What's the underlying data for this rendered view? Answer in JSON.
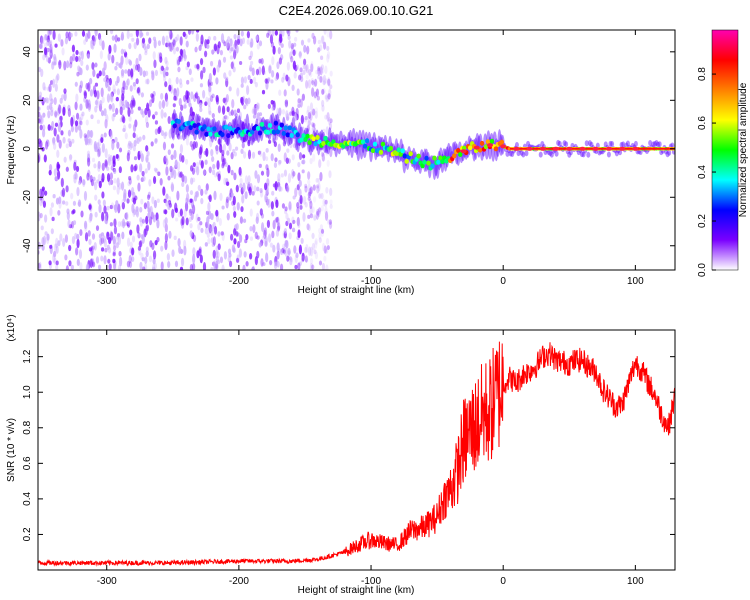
{
  "title": "C2E4.2026.069.00.10.G21",
  "chart_data": [
    {
      "type": "heatmap",
      "xlabel": "Height of straight line (km)",
      "ylabel": "Frequency (Hz)",
      "xlim": [
        -352,
        130
      ],
      "ylim": [
        -50,
        49
      ],
      "xticks": [
        -300,
        -200,
        -100,
        0,
        100
      ],
      "yticks": [
        -40,
        -20,
        0,
        20,
        40
      ],
      "colorbar": {
        "label": "Normalized spectral amplitude",
        "range": [
          0.0,
          0.98
        ],
        "ticks": [
          0.0,
          0.2,
          0.4,
          0.6,
          0.8
        ],
        "tick_labels": [
          "0.0",
          "0.2",
          "0.4",
          "0.6",
          "0.8"
        ],
        "colormap": [
          "#ffffff",
          "#7a00ff",
          "#0000ff",
          "#00ffff",
          "#00ff00",
          "#ffff00",
          "#ff8000",
          "#ff0000",
          "#ff00b0"
        ]
      },
      "features": {
        "noise_region_x": [
          -352,
          -130
        ],
        "signal_track": {
          "x": [
            -250,
            -230,
            -210,
            -190,
            -170,
            -150,
            -130,
            -110,
            -90,
            -70,
            -55,
            -45,
            -35,
            -25,
            -15,
            -5,
            5,
            30,
            60,
            90,
            130
          ],
          "y": [
            10,
            8,
            7,
            8,
            9,
            4,
            3,
            2,
            0,
            -4,
            -6,
            -5,
            -2,
            0,
            1,
            2,
            0,
            0,
            0,
            0,
            0
          ]
        },
        "steady_tone_start_x": 5,
        "steady_tone_freq": 0
      }
    },
    {
      "type": "line",
      "xlabel": "Height of straight line (km)",
      "ylabel": "SNR (10 * v/v)",
      "exponent_label": "(x10⁴)",
      "xlim": [
        -352,
        130
      ],
      "ylim": [
        0,
        1.35
      ],
      "xticks": [
        -300,
        -200,
        -100,
        0,
        100
      ],
      "yticks": [
        0.2,
        0.4,
        0.6,
        0.8,
        1.0,
        1.2
      ],
      "ytick_labels": [
        "0.2",
        "0.4",
        "0.6",
        "0.8",
        "1.0",
        "1.2"
      ],
      "color": "#ff0000",
      "series": [
        {
          "name": "SNR",
          "x": [
            -352,
            -300,
            -250,
            -200,
            -160,
            -140,
            -120,
            -110,
            -100,
            -90,
            -80,
            -70,
            -60,
            -50,
            -45,
            -40,
            -35,
            -30,
            -25,
            -20,
            -15,
            -10,
            -5,
            0,
            5,
            10,
            15,
            20,
            25,
            30,
            35,
            40,
            45,
            50,
            55,
            60,
            65,
            70,
            75,
            80,
            85,
            90,
            95,
            100,
            105,
            110,
            115,
            120,
            125,
            130
          ],
          "y": [
            0.04,
            0.04,
            0.04,
            0.05,
            0.05,
            0.06,
            0.1,
            0.14,
            0.17,
            0.15,
            0.14,
            0.22,
            0.24,
            0.3,
            0.4,
            0.45,
            0.55,
            0.72,
            0.78,
            0.82,
            0.88,
            0.9,
            0.98,
            1.05,
            1.08,
            1.05,
            1.1,
            1.12,
            1.15,
            1.2,
            1.22,
            1.18,
            1.17,
            1.16,
            1.18,
            1.18,
            1.14,
            1.12,
            1.02,
            0.97,
            0.92,
            0.93,
            1.05,
            1.17,
            1.12,
            1.05,
            0.98,
            0.87,
            0.8,
            0.98
          ]
        }
      ]
    }
  ]
}
